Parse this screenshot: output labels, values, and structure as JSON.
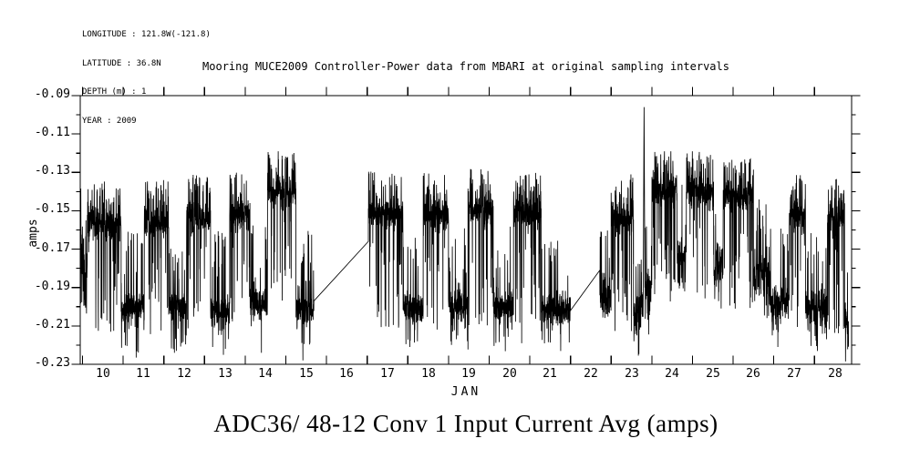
{
  "page": {
    "background": "#ffffff",
    "foreground": "#000000"
  },
  "metadata": {
    "longitude": "LONGITUDE : 121.8W(-121.8)",
    "latitude": "LATITUDE : 36.8N",
    "depth": "DEPTH (m) : 1",
    "year": "YEAR : 2009"
  },
  "title": "Mooring MUCE2009 Controller-Power data from MBARI at original sampling intervals",
  "bottom_title": "ADC36/ 48-12 Conv 1 Input Current Avg (amps)",
  "chart_data": {
    "type": "line",
    "title": "Mooring MUCE2009 Controller-Power data from MBARI at original sampling intervals",
    "series_name": "ADC36/ 48-12 Conv 1 Input Current Avg",
    "xlabel": "JAN",
    "ylabel": "amps",
    "line_color": "#000000",
    "grid": false,
    "legend": false,
    "x_range": [
      9.444,
      28.414
    ],
    "y_range": [
      -0.23,
      -0.09
    ],
    "x_unit": "day of month, JAN 2009",
    "x_major_ticks": [
      9.5,
      10.5,
      11.5,
      12.5,
      13.5,
      14.5,
      15.5,
      16.5,
      17.5,
      18.5,
      19.5,
      20.5,
      21.5,
      22.5,
      23.5,
      24.5,
      25.5,
      26.5,
      27.5
    ],
    "x_tick_labels": [
      {
        "day": 10,
        "label": "10"
      },
      {
        "day": 11,
        "label": "11"
      },
      {
        "day": 12,
        "label": "12"
      },
      {
        "day": 13,
        "label": "13"
      },
      {
        "day": 14,
        "label": "14"
      },
      {
        "day": 15,
        "label": "15"
      },
      {
        "day": 16,
        "label": "16"
      },
      {
        "day": 17,
        "label": "17"
      },
      {
        "day": 18,
        "label": "18"
      },
      {
        "day": 19,
        "label": "19"
      },
      {
        "day": 20,
        "label": "20"
      },
      {
        "day": 21,
        "label": "21"
      },
      {
        "day": 22,
        "label": "22"
      },
      {
        "day": 23,
        "label": "23"
      },
      {
        "day": 24,
        "label": "24"
      },
      {
        "day": 25,
        "label": "25"
      },
      {
        "day": 26,
        "label": "26"
      },
      {
        "day": 27,
        "label": "27"
      },
      {
        "day": 28,
        "label": "28"
      }
    ],
    "y_ticks": [
      {
        "value": -0.09,
        "label": "-0.09"
      },
      {
        "value": -0.11,
        "label": "-0.11"
      },
      {
        "value": -0.13,
        "label": "-0.13"
      },
      {
        "value": -0.15,
        "label": "-0.15"
      },
      {
        "value": -0.17,
        "label": "-0.17"
      },
      {
        "value": -0.19,
        "label": "-0.19"
      },
      {
        "value": -0.21,
        "label": "-0.21"
      },
      {
        "value": -0.23,
        "label": "-0.23"
      }
    ],
    "y_minor_step": 0.01,
    "signal": {
      "description_fields": {
        "high_state_amps": -0.152,
        "low_state_amps": -0.2,
        "period_days": 1.0
      },
      "sample_step_days": 0.0035,
      "noise_seed": 20090112,
      "segments": [
        {
          "type": "data",
          "t0": 9.444,
          "t1": 9.62,
          "level": -0.18,
          "noise": 0.02,
          "mode": "low"
        },
        {
          "type": "data",
          "t0": 9.62,
          "t1": 10.45,
          "level": -0.1565,
          "noise": 0.0085,
          "mode": "high"
        },
        {
          "type": "data",
          "t0": 10.45,
          "t1": 11.02,
          "level": -0.2005,
          "noise": 0.0085,
          "mode": "low"
        },
        {
          "type": "data",
          "t0": 11.02,
          "t1": 11.62,
          "level": -0.156,
          "noise": 0.0085,
          "mode": "high"
        },
        {
          "type": "data",
          "t0": 11.62,
          "t1": 12.06,
          "level": -0.2,
          "noise": 0.0085,
          "mode": "low"
        },
        {
          "type": "data",
          "t0": 12.06,
          "t1": 12.65,
          "level": -0.153,
          "noise": 0.0085,
          "mode": "high"
        },
        {
          "type": "data",
          "t0": 12.65,
          "t1": 13.12,
          "level": -0.202,
          "noise": 0.0085,
          "mode": "low"
        },
        {
          "type": "data",
          "t0": 13.12,
          "t1": 13.62,
          "level": -0.152,
          "noise": 0.0085,
          "mode": "high"
        },
        {
          "type": "data",
          "t0": 13.62,
          "t1": 14.05,
          "level": -0.1995,
          "noise": 0.0085,
          "mode": "low"
        },
        {
          "type": "data",
          "t0": 14.05,
          "t1": 14.75,
          "level": -0.14,
          "noise": 0.0085,
          "mode": "high"
        },
        {
          "type": "data",
          "t0": 14.75,
          "t1": 15.19,
          "level": -0.201,
          "noise": 0.009,
          "mode": "low"
        },
        {
          "type": "gap",
          "t0": 15.19,
          "v0": -0.197,
          "t1": 16.53,
          "v1": -0.166
        },
        {
          "type": "data",
          "t0": 16.53,
          "t1": 17.38,
          "level": -0.1515,
          "noise": 0.0085,
          "mode": "high"
        },
        {
          "type": "data",
          "t0": 17.38,
          "t1": 17.88,
          "level": -0.201,
          "noise": 0.0085,
          "mode": "low"
        },
        {
          "type": "data",
          "t0": 17.88,
          "t1": 18.5,
          "level": -0.152,
          "noise": 0.0085,
          "mode": "high"
        },
        {
          "type": "data",
          "t0": 18.5,
          "t1": 18.98,
          "level": -0.2,
          "noise": 0.0085,
          "mode": "low"
        },
        {
          "type": "data",
          "t0": 18.98,
          "t1": 19.6,
          "level": -0.15,
          "noise": 0.0085,
          "mode": "high"
        },
        {
          "type": "data",
          "t0": 19.6,
          "t1": 20.1,
          "level": -0.2,
          "noise": 0.0085,
          "mode": "low"
        },
        {
          "type": "data",
          "t0": 20.1,
          "t1": 20.78,
          "level": -0.151,
          "noise": 0.0085,
          "mode": "high"
        },
        {
          "type": "data",
          "t0": 20.78,
          "t1": 21.5,
          "level": -0.202,
          "noise": 0.009,
          "mode": "low"
        },
        {
          "type": "gap",
          "t0": 21.5,
          "v0": -0.202,
          "t1": 22.22,
          "v1": -0.181
        },
        {
          "type": "data",
          "t0": 22.22,
          "t1": 22.5,
          "level": -0.194,
          "noise": 0.011,
          "mode": "low"
        },
        {
          "type": "data",
          "t0": 22.5,
          "t1": 23.05,
          "level": -0.153,
          "noise": 0.0085,
          "mode": "high"
        },
        {
          "type": "data",
          "t0": 23.05,
          "t1": 23.29,
          "level": -0.201,
          "noise": 0.01,
          "mode": "low"
        },
        {
          "type": "data",
          "t0": 23.33,
          "t1": 23.5,
          "level": -0.192,
          "noise": 0.011,
          "mode": "low"
        },
        {
          "type": "data",
          "t0": 23.5,
          "t1": 24.12,
          "level": -0.139,
          "noise": 0.0085,
          "mode": "high"
        },
        {
          "type": "data",
          "t0": 24.12,
          "t1": 24.35,
          "level": -0.176,
          "noise": 0.012,
          "mode": "low"
        },
        {
          "type": "data",
          "t0": 24.35,
          "t1": 25.02,
          "level": -0.14,
          "noise": 0.0085,
          "mode": "high"
        },
        {
          "type": "data",
          "t0": 25.02,
          "t1": 25.25,
          "level": -0.178,
          "noise": 0.012,
          "mode": "low"
        },
        {
          "type": "data",
          "t0": 25.25,
          "t1": 26.0,
          "level": -0.142,
          "noise": 0.0085,
          "mode": "high"
        },
        {
          "type": "data",
          "t0": 26.0,
          "t1": 26.4,
          "level": -0.183,
          "noise": 0.012,
          "mode": "low"
        },
        {
          "type": "data",
          "t0": 26.4,
          "t1": 26.88,
          "level": -0.198,
          "noise": 0.01,
          "mode": "low"
        },
        {
          "type": "data",
          "t0": 26.88,
          "t1": 27.28,
          "level": -0.153,
          "noise": 0.0085,
          "mode": "high"
        },
        {
          "type": "data",
          "t0": 27.28,
          "t1": 27.82,
          "level": -0.201,
          "noise": 0.0095,
          "mode": "low"
        },
        {
          "type": "data",
          "t0": 27.82,
          "t1": 28.24,
          "level": -0.154,
          "noise": 0.0085,
          "mode": "high"
        },
        {
          "type": "data",
          "t0": 28.24,
          "t1": 28.34,
          "level": -0.206,
          "noise": 0.008,
          "mode": "low"
        }
      ],
      "spike": {
        "t": 23.31,
        "value": -0.096
      },
      "dips": [
        {
          "t": 10.82,
          "value": -0.2265
        },
        {
          "t": 12.7,
          "value": -0.221
        },
        {
          "t": 13.9,
          "value": -0.224
        },
        {
          "t": 14.92,
          "value": -0.228
        },
        {
          "t": 17.55,
          "value": -0.221
        },
        {
          "t": 20.3,
          "value": -0.219
        },
        {
          "t": 23.17,
          "value": -0.2255
        },
        {
          "t": 26.6,
          "value": -0.221
        },
        {
          "t": 27.55,
          "value": -0.2205
        }
      ]
    }
  }
}
